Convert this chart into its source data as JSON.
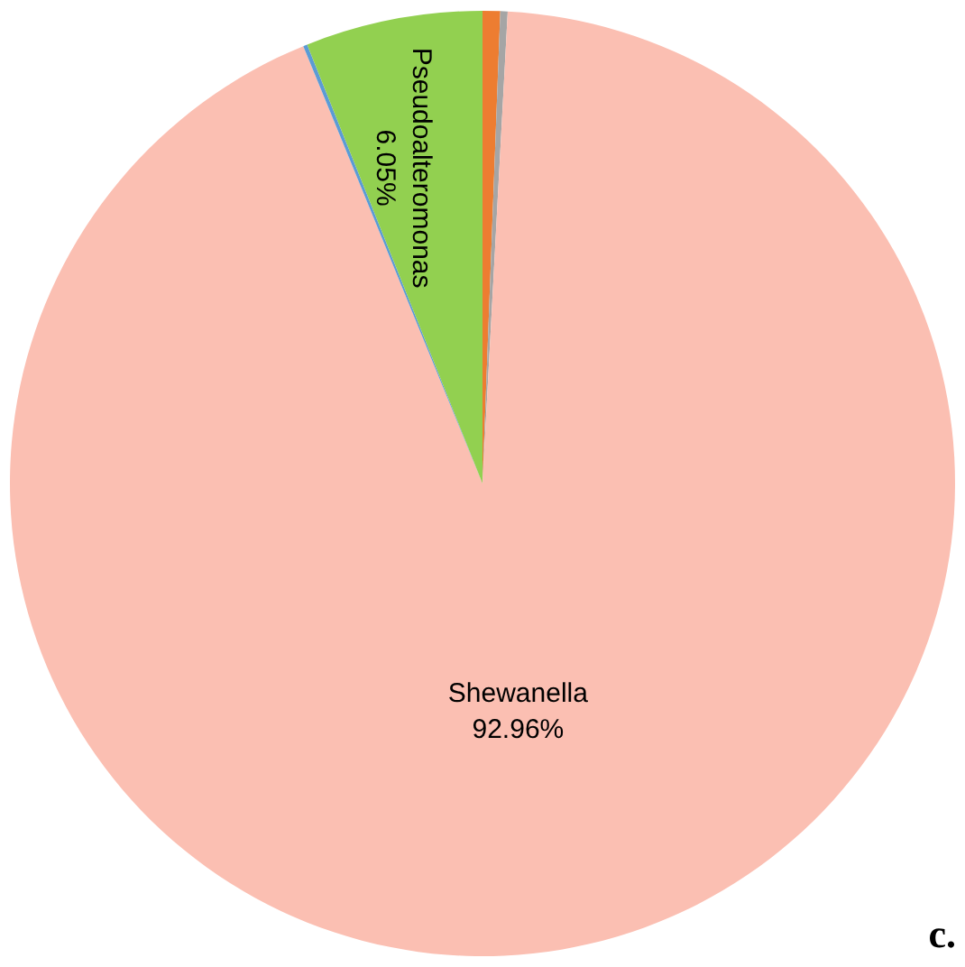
{
  "chart_data": {
    "type": "pie",
    "categories": [
      null,
      null,
      "Shewanella",
      null,
      "Pseudoalteromonas"
    ],
    "values": [
      0.6,
      0.25,
      92.96,
      0.14,
      6.05
    ],
    "colors": [
      "#ed7d31",
      "#a5a5a5",
      "#fbbfb2",
      "#5b9bd5",
      "#92d050"
    ],
    "value_labels": [
      null,
      null,
      "92.96%",
      null,
      "6.05%"
    ],
    "annotations": [
      "c."
    ]
  }
}
